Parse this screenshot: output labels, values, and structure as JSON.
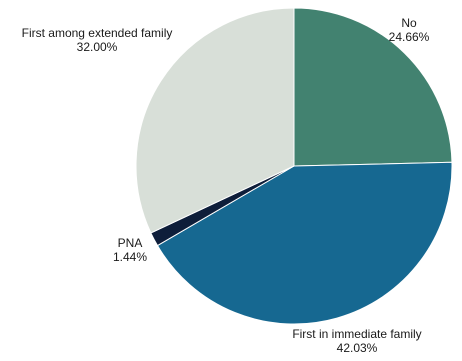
{
  "chart_data": {
    "type": "pie",
    "title": "",
    "start_angle_deg": 0,
    "direction": "clockwise",
    "slices": [
      {
        "label": "No",
        "value": 24.66,
        "value_label": "24.66%",
        "color": "#428270"
      },
      {
        "label": "First in immediate family",
        "value": 42.03,
        "value_label": "42.03%",
        "color": "#166891"
      },
      {
        "label": "PNA",
        "value": 1.44,
        "value_label": "1.44%",
        "color": "#0e1e3a"
      },
      {
        "label": "First among extended family",
        "value": 32.0,
        "value_label": "32.00%",
        "color": "#d8dfd8"
      }
    ]
  }
}
